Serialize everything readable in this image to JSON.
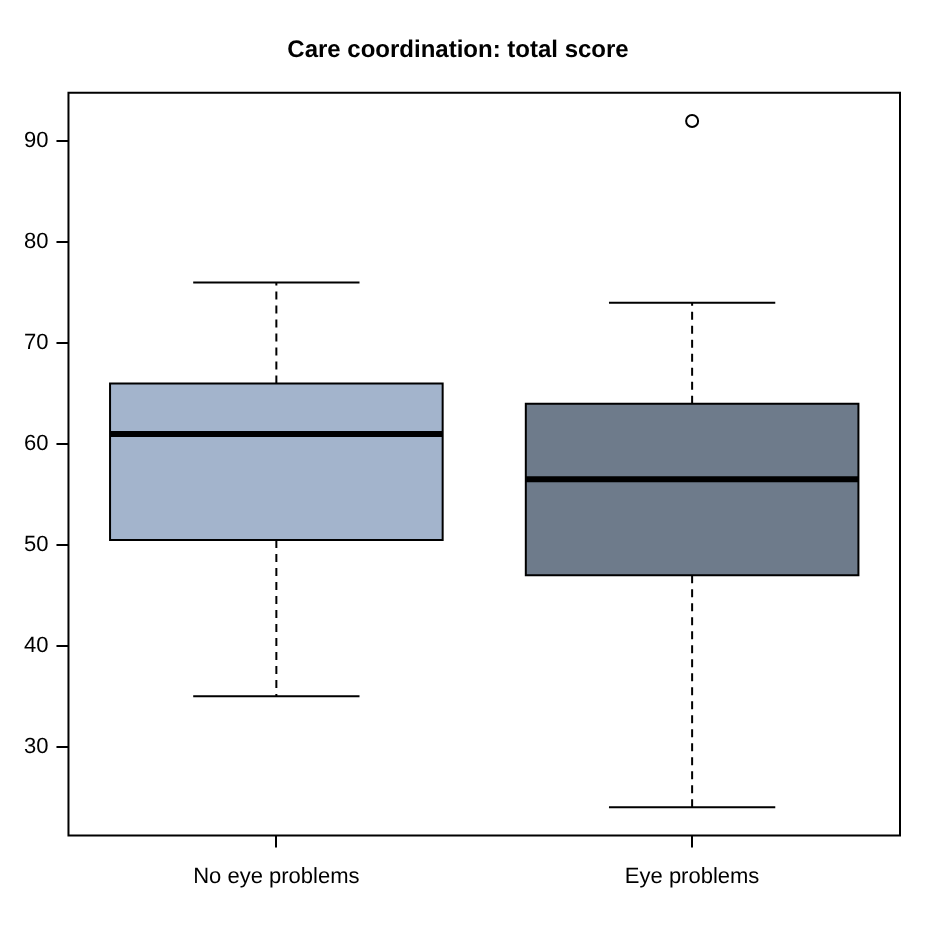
{
  "chart_data": {
    "type": "box",
    "title": "Care coordination: total score",
    "categories": [
      "No eye problems",
      "Eye problems"
    ],
    "boxes": [
      {
        "low": 35,
        "q1": 50.5,
        "median": 61,
        "q3": 66,
        "high": 76
      },
      {
        "low": 24,
        "q1": 47,
        "median": 56.5,
        "q3": 64,
        "high": 74,
        "outliers": [
          92
        ]
      }
    ],
    "colors": [
      "#a3b4cc",
      "#6e7b8b"
    ],
    "ylim": [
      21.2,
      94.8
    ],
    "yticks": [
      30,
      40,
      50,
      60,
      70,
      80,
      90
    ],
    "grid": false,
    "legend": false
  }
}
